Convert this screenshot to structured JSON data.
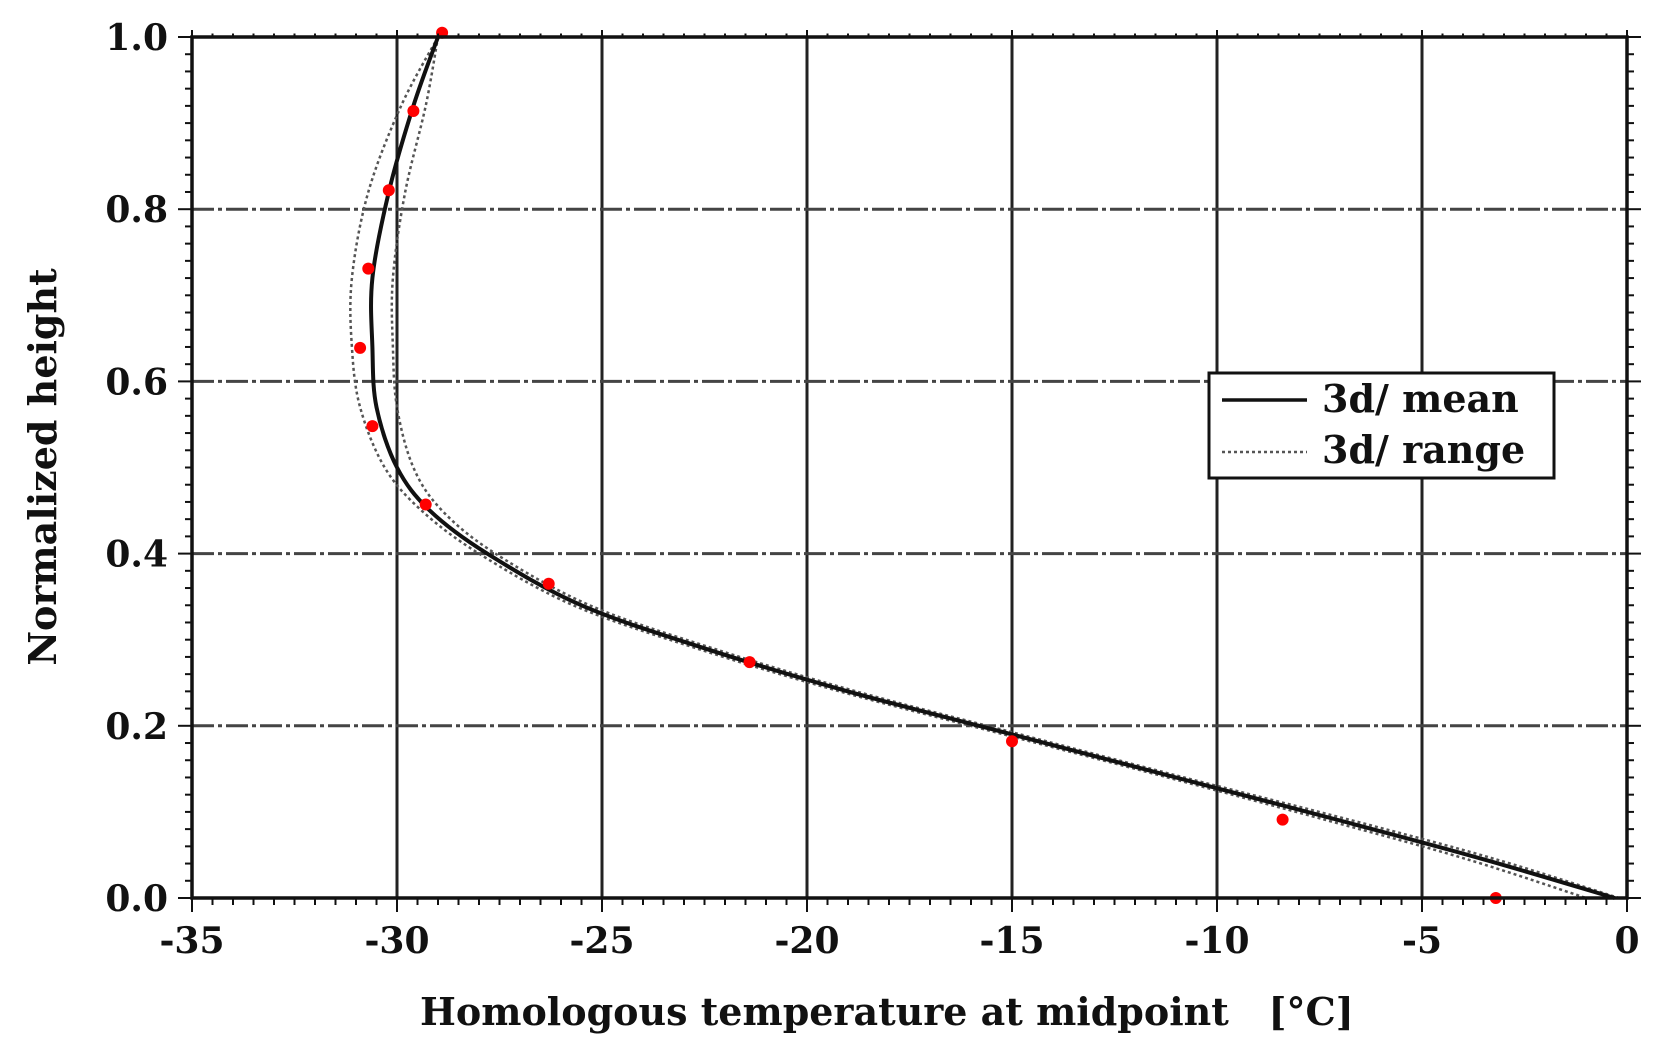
{
  "chart_data": {
    "type": "line",
    "xlabel": "Homologous temperature at midpoint   [°C]",
    "ylabel": "Normalized height",
    "xlim": [
      -35,
      0
    ],
    "ylim": [
      0.0,
      1.0
    ],
    "x_ticks": [
      -35,
      -30,
      -25,
      -20,
      -15,
      -10,
      -5,
      0
    ],
    "x_tick_labels": [
      "-35",
      "-30",
      "-25",
      "-20",
      "-15",
      "-10",
      "-5",
      "0"
    ],
    "y_ticks": [
      0.0,
      0.2,
      0.4,
      0.6,
      0.8,
      1.0
    ],
    "y_tick_labels": [
      "0.0",
      "0.2",
      "0.4",
      "0.6",
      "0.8",
      "1.0"
    ],
    "grid": true,
    "legend_position": "center-right",
    "series": [
      {
        "name": "3d/ mean",
        "style": "solid",
        "color": "#111111",
        "points": [
          [
            -29.0,
            1.0
          ],
          [
            -29.6,
            0.92
          ],
          [
            -30.2,
            0.82
          ],
          [
            -30.6,
            0.72
          ],
          [
            -30.6,
            0.64
          ],
          [
            -30.5,
            0.57
          ],
          [
            -30.0,
            0.5
          ],
          [
            -29.2,
            0.45
          ],
          [
            -27.8,
            0.4
          ],
          [
            -25.5,
            0.34
          ],
          [
            -22.5,
            0.29
          ],
          [
            -19.0,
            0.24
          ],
          [
            -15.0,
            0.19
          ],
          [
            -11.0,
            0.14
          ],
          [
            -7.0,
            0.09
          ],
          [
            -3.5,
            0.045
          ],
          [
            -0.3,
            0.0
          ]
        ]
      },
      {
        "name": "3d/ range",
        "style": "dotted",
        "color": "#555555",
        "lower_points": [
          [
            -29.0,
            1.0
          ],
          [
            -29.9,
            0.92
          ],
          [
            -30.7,
            0.82
          ],
          [
            -31.1,
            0.72
          ],
          [
            -31.1,
            0.64
          ],
          [
            -30.9,
            0.57
          ],
          [
            -30.3,
            0.5
          ],
          [
            -29.4,
            0.45
          ],
          [
            -28.0,
            0.4
          ],
          [
            -25.7,
            0.34
          ],
          [
            -22.7,
            0.29
          ],
          [
            -19.2,
            0.24
          ],
          [
            -15.2,
            0.19
          ],
          [
            -11.2,
            0.14
          ],
          [
            -7.3,
            0.09
          ],
          [
            -3.9,
            0.045
          ],
          [
            -1.0,
            0.0
          ]
        ],
        "upper_points": [
          [
            -29.0,
            1.0
          ],
          [
            -29.3,
            0.92
          ],
          [
            -29.8,
            0.82
          ],
          [
            -30.1,
            0.72
          ],
          [
            -30.1,
            0.64
          ],
          [
            -30.0,
            0.57
          ],
          [
            -29.6,
            0.5
          ],
          [
            -28.9,
            0.45
          ],
          [
            -27.6,
            0.4
          ],
          [
            -25.3,
            0.34
          ],
          [
            -22.3,
            0.29
          ],
          [
            -18.8,
            0.24
          ],
          [
            -14.8,
            0.19
          ],
          [
            -10.8,
            0.14
          ],
          [
            -6.7,
            0.09
          ],
          [
            -3.2,
            0.045
          ],
          [
            -0.2,
            0.0
          ]
        ]
      },
      {
        "marker": "circle",
        "color": "#ff0000",
        "points": [
          [
            -28.9,
            1.005
          ],
          [
            -29.6,
            0.914
          ],
          [
            -30.2,
            0.822
          ],
          [
            -30.7,
            0.731
          ],
          [
            -30.9,
            0.639
          ],
          [
            -30.6,
            0.548
          ],
          [
            -29.3,
            0.457
          ],
          [
            -26.3,
            0.365
          ],
          [
            -21.4,
            0.274
          ],
          [
            -15.0,
            0.182
          ],
          [
            -8.4,
            0.091
          ],
          [
            -3.2,
            0.0
          ]
        ]
      }
    ]
  }
}
